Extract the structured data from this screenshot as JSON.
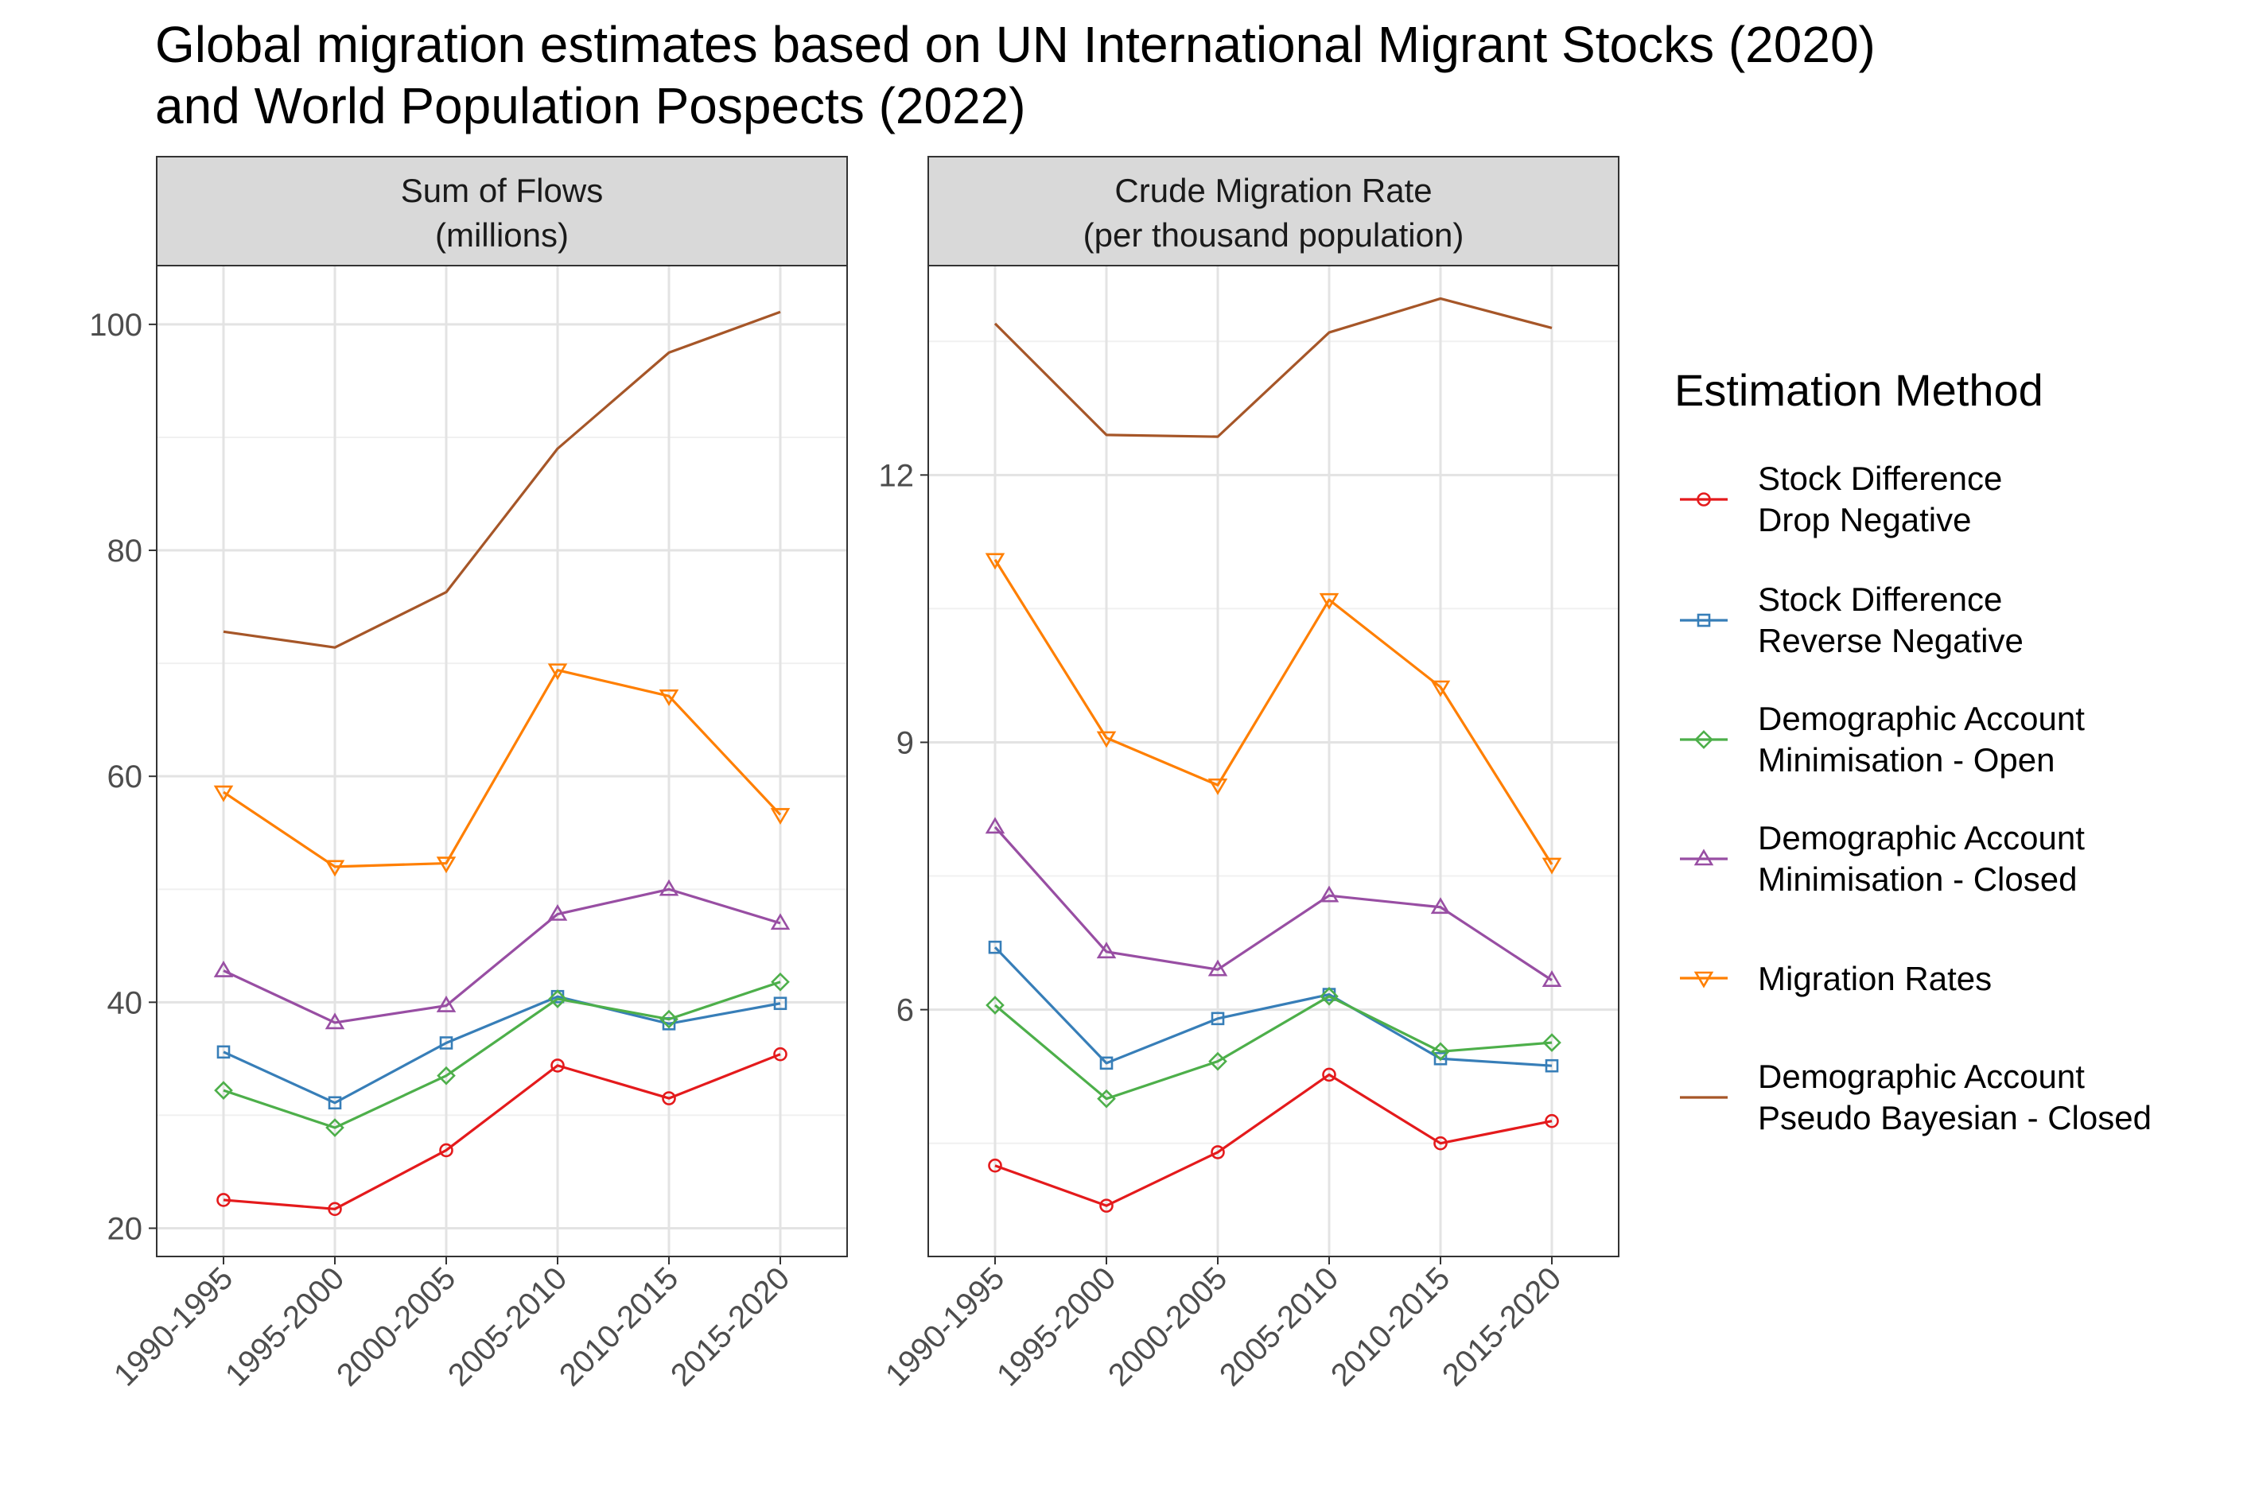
{
  "title_line1": "Global migration estimates based on UN International Migrant Stocks (2020)",
  "title_line2": "and World Population Pospects (2022)",
  "chart_data": [
    {
      "type": "line",
      "facet": "Sum of Flows (millions)",
      "strip_line1": "Sum of Flows",
      "strip_line2": "(millions)",
      "categories": [
        "1990-1995",
        "1995-2000",
        "2000-2005",
        "2005-2010",
        "2010-2015",
        "2015-2020"
      ],
      "ylim": [
        17.5,
        105.2
      ],
      "yticks": [
        20,
        40,
        60,
        80,
        100
      ],
      "ytick_labels": [
        "20",
        "40",
        "60",
        "80",
        "100"
      ],
      "yminor": [
        30,
        50,
        70,
        90
      ],
      "series": [
        {
          "name": "Stock Difference Drop Negative",
          "values": [
            22.5,
            21.7,
            26.9,
            34.4,
            31.5,
            35.4
          ]
        },
        {
          "name": "Stock Difference Reverse Negative",
          "values": [
            35.6,
            31.1,
            36.4,
            40.5,
            38.1,
            39.9
          ]
        },
        {
          "name": "Demographic Account Minimisation - Open",
          "values": [
            32.2,
            28.9,
            33.5,
            40.3,
            38.5,
            41.8
          ]
        },
        {
          "name": "Demographic Account Minimisation - Closed",
          "values": [
            42.8,
            38.2,
            39.7,
            47.8,
            50.0,
            47.0
          ]
        },
        {
          "name": "Migration Rates",
          "values": [
            58.6,
            52.0,
            52.3,
            69.4,
            67.1,
            56.6
          ]
        },
        {
          "name": "Demographic Account Pseudo Bayesian - Closed",
          "values": [
            72.8,
            71.4,
            76.3,
            89.0,
            97.5,
            101.1
          ]
        }
      ]
    },
    {
      "type": "line",
      "facet": "Crude Migration Rate (per thousand population)",
      "strip_line1": "Crude Migration Rate",
      "strip_line2": "(per thousand population)",
      "categories": [
        "1990-1995",
        "1995-2000",
        "2000-2005",
        "2005-2010",
        "2010-2015",
        "2015-2020"
      ],
      "ylim": [
        3.23,
        14.35
      ],
      "yticks": [
        6,
        9,
        12
      ],
      "ytick_labels": [
        "6",
        "9",
        "12"
      ],
      "yminor": [
        4.5,
        7.5,
        10.5,
        13.5
      ],
      "series": [
        {
          "name": "Stock Difference Drop Negative",
          "values": [
            4.25,
            3.8,
            4.4,
            5.27,
            4.5,
            4.75
          ]
        },
        {
          "name": "Stock Difference Reverse Negative",
          "values": [
            6.7,
            5.4,
            5.9,
            6.17,
            5.45,
            5.37
          ]
        },
        {
          "name": "Demographic Account Minimisation - Open",
          "values": [
            6.05,
            5.0,
            5.42,
            6.15,
            5.53,
            5.63
          ]
        },
        {
          "name": "Demographic Account Minimisation - Closed",
          "values": [
            8.05,
            6.65,
            6.45,
            7.28,
            7.15,
            6.33
          ]
        },
        {
          "name": "Migration Rates",
          "values": [
            11.05,
            9.05,
            8.52,
            10.6,
            9.62,
            7.63
          ]
        },
        {
          "name": "Demographic Account Pseudo Bayesian - Closed",
          "values": [
            13.7,
            12.45,
            12.43,
            13.6,
            13.98,
            13.65
          ]
        }
      ]
    }
  ],
  "legend": {
    "title": "Estimation Method",
    "items": [
      {
        "line1": "Stock Difference",
        "line2": "Drop Negative",
        "color": "#E41A1C",
        "shape": "circle"
      },
      {
        "line1": "Stock Difference",
        "line2": "Reverse Negative",
        "color": "#377EB8",
        "shape": "square"
      },
      {
        "line1": "Demographic Account",
        "line2": "Minimisation - Open",
        "color": "#4DAF4A",
        "shape": "diamond"
      },
      {
        "line1": "Demographic Account",
        "line2": "Minimisation - Closed",
        "color": "#984EA3",
        "shape": "triangle-up"
      },
      {
        "line1": "Migration Rates",
        "line2": "",
        "color": "#FF7F00",
        "shape": "triangle-down"
      },
      {
        "line1": "Demographic Account",
        "line2": "Pseudo Bayesian - Closed",
        "color": "#A65628",
        "shape": "none"
      }
    ]
  }
}
